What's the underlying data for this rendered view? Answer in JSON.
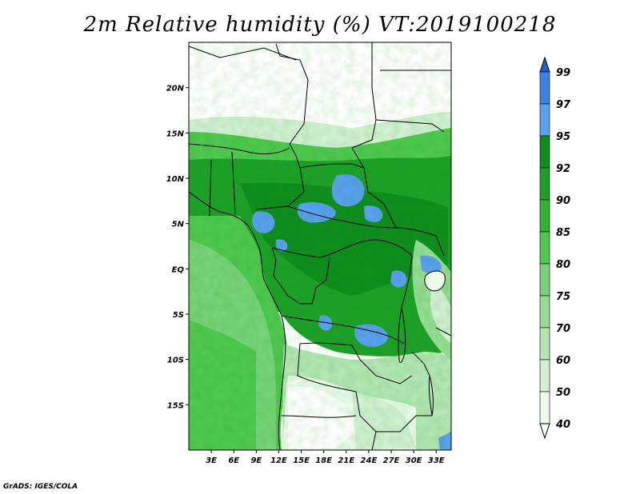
{
  "title": "2m Relative humidity (%) VT:2019100218",
  "footer": "GrADS: IGES/COLA",
  "map": {
    "lon_range": [
      0,
      35
    ],
    "lat_range": [
      -20,
      25
    ],
    "lat_ticks": [
      {
        "value": 20,
        "label": "20N"
      },
      {
        "value": 15,
        "label": "15N"
      },
      {
        "value": 10,
        "label": "10N"
      },
      {
        "value": 5,
        "label": "5N"
      },
      {
        "value": 0,
        "label": "EQ"
      },
      {
        "value": -5,
        "label": "5S"
      },
      {
        "value": -10,
        "label": "10S"
      },
      {
        "value": -15,
        "label": "15S"
      }
    ],
    "lon_ticks": [
      {
        "value": 3,
        "label": "3E"
      },
      {
        "value": 6,
        "label": "6E"
      },
      {
        "value": 9,
        "label": "9E"
      },
      {
        "value": 12,
        "label": "12E"
      },
      {
        "value": 15,
        "label": "15E"
      },
      {
        "value": 18,
        "label": "18E"
      },
      {
        "value": 21,
        "label": "21E"
      },
      {
        "value": 24,
        "label": "24E"
      },
      {
        "value": 27,
        "label": "27E"
      },
      {
        "value": 30,
        "label": "30E"
      },
      {
        "value": 33,
        "label": "33E"
      }
    ]
  },
  "colorbar": {
    "levels": [
      "99",
      "97",
      "95",
      "92",
      "90",
      "85",
      "80",
      "75",
      "70",
      "60",
      "50",
      "40"
    ],
    "colors": [
      "#1e5fc8",
      "#3c82e6",
      "#5aa0f0",
      "#0f8c1e",
      "#1ea028",
      "#32b432",
      "#50c850",
      "#78d278",
      "#96dc96",
      "#b4e6b4",
      "#d2f0d2",
      "#ebfaeb",
      "#ffffff"
    ]
  }
}
